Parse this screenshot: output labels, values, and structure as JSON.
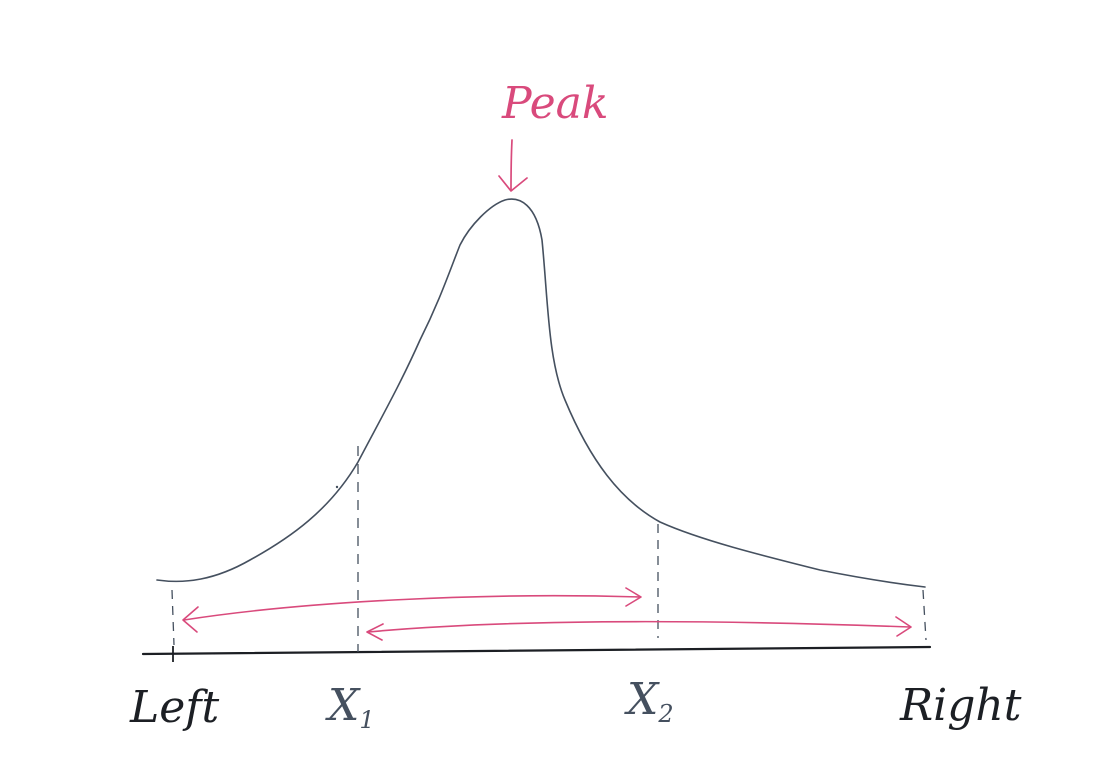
{
  "annotation": {
    "peak_label": "Peak"
  },
  "axis_labels": {
    "left": "Left",
    "x1": "X",
    "x1_subscript": "1",
    "x2": "X",
    "x2_subscript": "2",
    "right": "Right"
  },
  "colors": {
    "ink": "#45505f",
    "accent": "#d94a7c",
    "background": "#ffffff"
  }
}
